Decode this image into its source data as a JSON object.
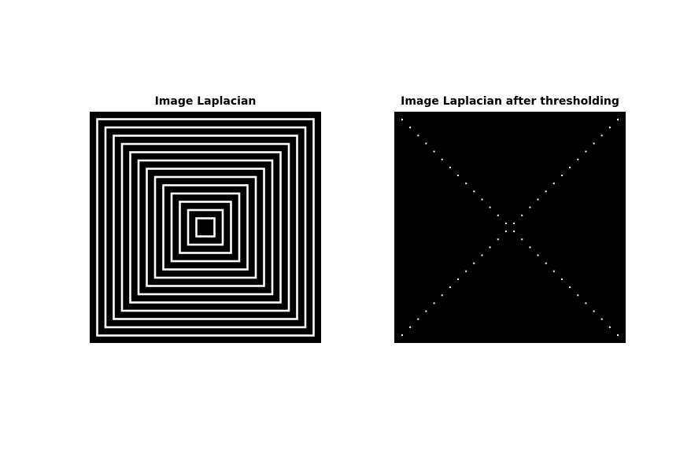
{
  "figure": {
    "panels": [
      {
        "title": "Image Laplacian",
        "content": "concentric-squares"
      },
      {
        "title": "Image Laplacian after thresholding",
        "content": "diagonal-dots"
      }
    ],
    "colors": {
      "background": "#ffffff",
      "image_bg": "#000000",
      "foreground": "#ffffff"
    }
  }
}
